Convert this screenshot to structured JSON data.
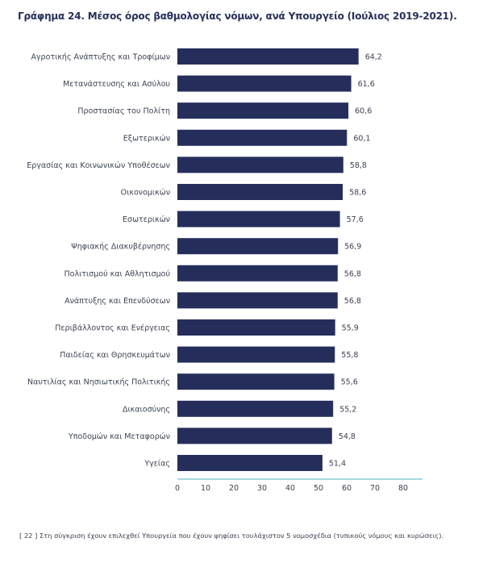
{
  "title": "Γράφημα 24. Μέσος όρος βαθμολογίας νόμων, ανά Υπουργείο (Ιούλιος 2019-2021).",
  "footnote": "[ 22 ] Στη σύγκριση έχουν επιλεχθεί Υπουργεία που έχουν ψηφίσει τουλάχιστον 5 νομοσχέδια (τυπικούς νόμους και κυρώσεις).",
  "chart_data": {
    "type": "bar",
    "orientation": "horizontal",
    "categories": [
      "Αγροτικής Ανάπτυξης και Τροφίμων",
      "Μετανάστευσης και Ασύλου",
      "Προστασίας του Πολίτη",
      "Εξωτερικών",
      "Εργασίας και Κοινωνικών Υποθέσεων",
      "Οικονομικών",
      "Εσωτερικών",
      "Ψηφιακής Διακυβέρνησης",
      "Πολιτισμού και Αθλητισμού",
      "Ανάπτυξης και Επενδύσεων",
      "Περιβάλλοντος και Ενέργειας",
      "Παιδείας και Θρησκευμάτων",
      "Ναυτιλίας και Νησιωτικής Πολιτικής",
      "Δικαιοσύνης",
      "Υποδομών και Μεταφορών",
      "Υγείας"
    ],
    "values": [
      64.2,
      61.6,
      60.6,
      60.1,
      58.8,
      58.6,
      57.6,
      56.9,
      56.8,
      56.8,
      55.9,
      55.8,
      55.6,
      55.2,
      54.8,
      51.4
    ],
    "value_labels": [
      "64,2",
      "61,6",
      "60,6",
      "60,1",
      "58,8",
      "58,6",
      "57,6",
      "56,9",
      "56,8",
      "56,8",
      "55,9",
      "55,8",
      "55,6",
      "55,2",
      "54,8",
      "51,4"
    ],
    "xlim": [
      0,
      85
    ],
    "ticks": [
      0,
      10,
      20,
      30,
      40,
      50,
      60,
      70,
      80
    ],
    "tick_labels": [
      "0",
      "10",
      "20",
      "30",
      "40",
      "50",
      "60",
      "70",
      "80"
    ],
    "bar_color": "#252e5b",
    "axis_color": "#4bb3c8",
    "grid": false
  }
}
